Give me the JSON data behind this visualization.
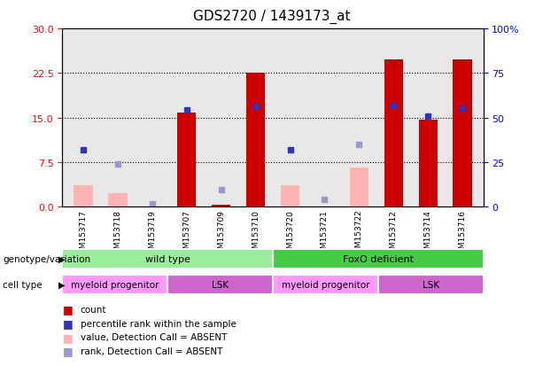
{
  "title": "GDS2720 / 1439173_at",
  "samples": [
    "GSM153717",
    "GSM153718",
    "GSM153719",
    "GSM153707",
    "GSM153709",
    "GSM153710",
    "GSM153720",
    "GSM153721",
    "GSM153722",
    "GSM153712",
    "GSM153714",
    "GSM153716"
  ],
  "count_values": [
    0,
    0,
    0,
    15.8,
    0.3,
    22.6,
    0,
    0,
    0,
    24.8,
    14.7,
    24.8
  ],
  "count_absent": [
    3.5,
    2.2,
    0,
    0,
    0,
    0,
    3.5,
    0,
    6.5,
    0,
    0,
    0
  ],
  "rank_values": [
    9.5,
    0,
    0,
    16.2,
    0,
    16.8,
    9.5,
    0,
    0,
    17.0,
    15.2,
    16.5
  ],
  "rank_absent": [
    0,
    7.2,
    0.5,
    0,
    2.8,
    0,
    0,
    1.2,
    10.5,
    0,
    0,
    0
  ],
  "left_yticks": [
    0,
    7.5,
    15,
    22.5,
    30
  ],
  "right_yticks": [
    0,
    25,
    50,
    75,
    100
  ],
  "right_yticklabels": [
    "0",
    "25",
    "50",
    "75",
    "100%"
  ],
  "ylim_left": [
    0,
    30
  ],
  "ylim_right": [
    0,
    100
  ],
  "color_count": "#cc0000",
  "color_count_absent": "#ffb3b3",
  "color_rank": "#3333bb",
  "color_rank_absent": "#9999cc",
  "genotype_groups": [
    {
      "label": "wild type",
      "start": 0,
      "end": 5,
      "color": "#99ee99"
    },
    {
      "label": "FoxO deficient",
      "start": 6,
      "end": 11,
      "color": "#44cc44"
    }
  ],
  "cell_type_groups": [
    {
      "label": "myeloid progenitor",
      "start": 0,
      "end": 2,
      "color": "#ff99ff"
    },
    {
      "label": "LSK",
      "start": 3,
      "end": 5,
      "color": "#cc66cc"
    },
    {
      "label": "myeloid progenitor",
      "start": 6,
      "end": 8,
      "color": "#ff99ff"
    },
    {
      "label": "LSK",
      "start": 9,
      "end": 11,
      "color": "#cc66cc"
    }
  ],
  "legend_items": [
    {
      "label": "count",
      "color": "#cc0000"
    },
    {
      "label": "percentile rank within the sample",
      "color": "#3333bb"
    },
    {
      "label": "value, Detection Call = ABSENT",
      "color": "#ffb3b3"
    },
    {
      "label": "rank, Detection Call = ABSENT",
      "color": "#9999cc"
    }
  ],
  "bar_width": 0.55,
  "rank_marker_size": 5
}
